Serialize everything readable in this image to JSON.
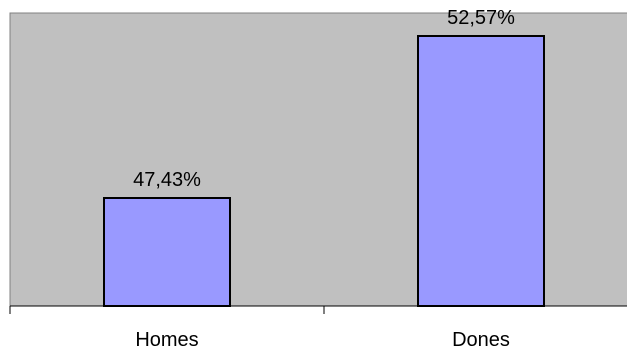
{
  "chart_data": {
    "type": "bar",
    "categories": [
      "Homes",
      "Dones"
    ],
    "values": [
      47.43,
      52.57
    ],
    "data_labels": [
      "47,43%",
      "52,57%"
    ],
    "title": "",
    "xlabel": "",
    "ylabel": "",
    "ylim": [
      0,
      60
    ],
    "grid": false,
    "legend": "none",
    "colors": {
      "bar_fill": "#9999ff",
      "bar_stroke": "#000000",
      "plot_background": "#c0c0c0"
    }
  }
}
